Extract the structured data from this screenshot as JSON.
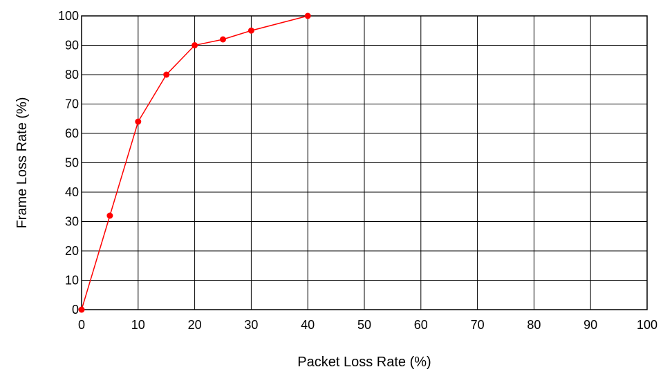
{
  "chart_data": {
    "type": "line",
    "title": "",
    "xlabel": "Packet Loss Rate (%)",
    "ylabel": "Frame Loss Rate (%)",
    "xlim": [
      0,
      100
    ],
    "ylim": [
      0,
      100
    ],
    "x_ticks": [
      0,
      10,
      20,
      30,
      40,
      50,
      60,
      70,
      80,
      90,
      100
    ],
    "y_ticks": [
      0,
      10,
      20,
      30,
      40,
      50,
      60,
      70,
      80,
      90,
      100
    ],
    "grid": true,
    "series": [
      {
        "x": [
          0,
          5,
          10,
          15,
          20,
          25,
          30,
          40
        ],
        "y": [
          0,
          32,
          64,
          80,
          90,
          92,
          95,
          100
        ],
        "color": "#ff0000"
      }
    ]
  }
}
